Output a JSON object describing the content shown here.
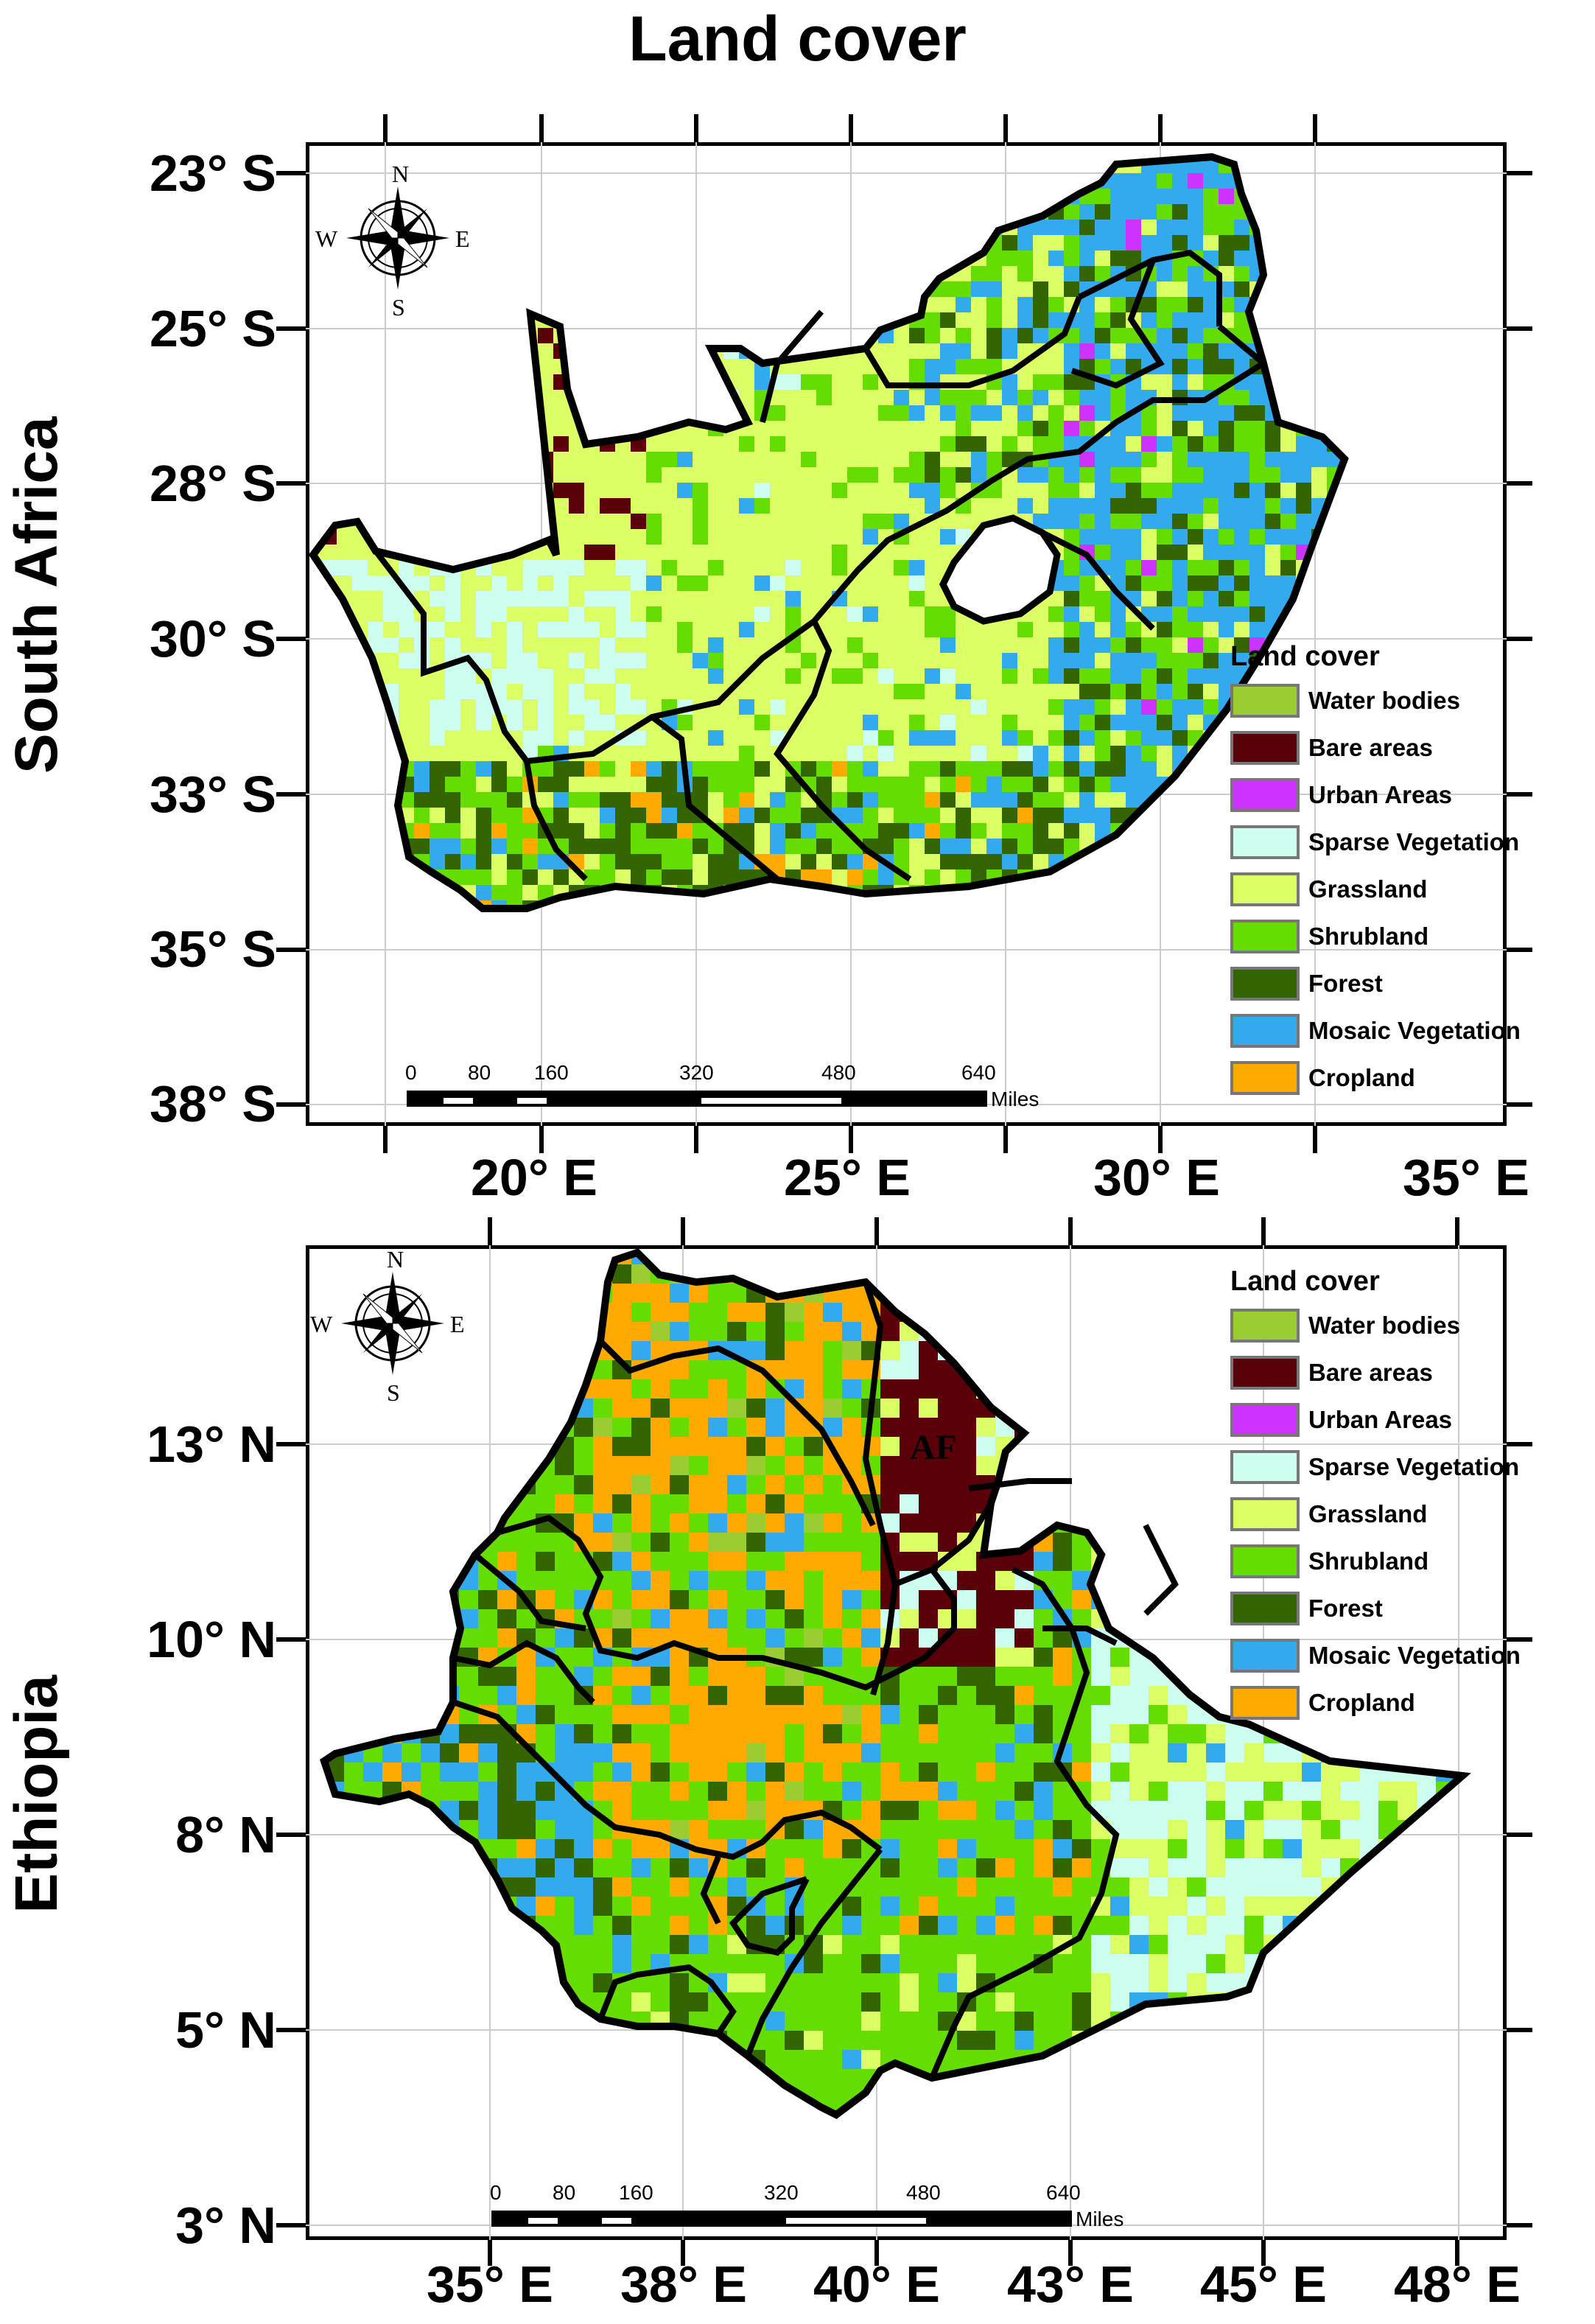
{
  "title": "Land cover",
  "legend": {
    "title": "Land cover",
    "items": [
      {
        "label": "Water bodies",
        "color": "#9acd32"
      },
      {
        "label": "Bare areas",
        "color": "#5a0008"
      },
      {
        "label": "Urban Areas",
        "color": "#cc33ff"
      },
      {
        "label": "Sparse Vegetation",
        "color": "#ccfff2"
      },
      {
        "label": "Grassland",
        "color": "#ddff66"
      },
      {
        "label": "Shrubland",
        "color": "#66dd00"
      },
      {
        "label": "Forest",
        "color": "#336600"
      },
      {
        "label": "Mosaic Vegetation",
        "color": "#33aaee"
      },
      {
        "label": "Cropland",
        "color": "#ffaa00"
      }
    ]
  },
  "compass": {
    "n": "N",
    "s": "S",
    "e": "E",
    "w": "W"
  },
  "scale": {
    "ticks": [
      "0",
      "80",
      "160",
      "320",
      "480",
      "640"
    ],
    "unit": "Miles"
  },
  "panels": {
    "south_africa": {
      "country": "South Africa",
      "lat_labels": [
        "23° S",
        "25° S",
        "28° S",
        "30° S",
        "33° S",
        "35° S",
        "38° S"
      ],
      "lon_labels": [
        "20° E",
        "25° E",
        "30° E",
        "35° E"
      ]
    },
    "ethiopia": {
      "country": "Ethiopia",
      "region_label": "AF",
      "lat_labels": [
        "13° N",
        "10° N",
        "8° N",
        "5° N",
        "3° N"
      ],
      "lon_labels": [
        "35° E",
        "38° E",
        "40° E",
        "43° E",
        "45° E",
        "48° E"
      ]
    }
  }
}
